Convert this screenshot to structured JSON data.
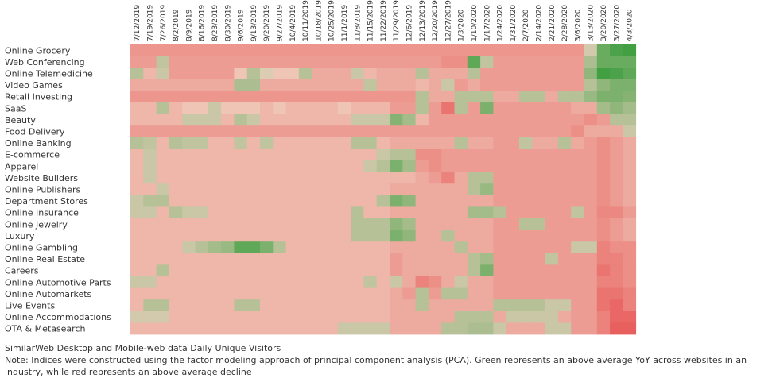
{
  "chart_data": {
    "type": "heatmap",
    "x": [
      "7/12/2019",
      "7/19/2019",
      "7/26/2019",
      "8/2/2019",
      "8/9/2019",
      "8/16/2019",
      "8/23/2019",
      "8/30/2019",
      "9/6/2019",
      "9/13/2019",
      "9/20/2019",
      "9/27/2019",
      "10/4/2019",
      "10/11/2019",
      "10/18/2019",
      "10/25/2019",
      "11/1/2019",
      "11/8/2019",
      "11/15/2019",
      "11/22/2019",
      "11/29/2019",
      "12/6/2019",
      "12/13/2019",
      "12/20/2019",
      "12/27/2019",
      "1/3/2020",
      "1/10/2020",
      "1/17/2020",
      "1/24/2020",
      "1/31/2020",
      "2/7/2020",
      "2/14/2020",
      "2/21/2020",
      "2/28/2020",
      "3/6/2020",
      "3/13/2020",
      "3/20/2020",
      "3/27/2020",
      "4/3/2020"
    ],
    "y": [
      "Online Grocery",
      "Web Conferencing",
      "Online Telemedicine",
      "Video Games",
      "Retail Investing",
      "SaaS",
      "Beauty",
      "Food Delivery",
      "Online Banking",
      "E-commerce",
      "Apparel",
      "Website Builders",
      "Online Publishers",
      "Department Stores",
      "Online Insurance",
      "Online Jewelry",
      "Luxury",
      "Online Gambling",
      "Online Real Estate",
      "Careers",
      "Online Automotive Parts",
      "Online Automarkets",
      "Live Events",
      "Online Accommodations",
      "OTA & Metasearch"
    ],
    "values": [
      [
        -0.45,
        -0.45,
        -0.45,
        -0.45,
        -0.45,
        -0.45,
        -0.45,
        -0.45,
        -0.45,
        -0.45,
        -0.45,
        -0.45,
        -0.45,
        -0.45,
        -0.45,
        -0.45,
        -0.45,
        -0.45,
        -0.45,
        -0.45,
        -0.45,
        -0.45,
        -0.45,
        -0.45,
        -0.45,
        -0.45,
        -0.45,
        -0.45,
        -0.45,
        -0.45,
        -0.45,
        -0.45,
        -0.45,
        -0.45,
        -0.45,
        0.15,
        0.7,
        0.85,
        0.9
      ],
      [
        -0.4,
        -0.4,
        0.25,
        -0.4,
        -0.4,
        -0.4,
        -0.4,
        -0.4,
        -0.4,
        -0.4,
        -0.4,
        -0.4,
        -0.4,
        -0.4,
        -0.4,
        -0.4,
        -0.4,
        -0.4,
        -0.4,
        -0.4,
        -0.4,
        -0.4,
        -0.4,
        -0.4,
        -0.5,
        -0.5,
        0.75,
        0.25,
        -0.4,
        -0.4,
        -0.4,
        -0.4,
        -0.4,
        -0.4,
        -0.4,
        0.35,
        0.7,
        0.7,
        0.7
      ],
      [
        0.3,
        -0.2,
        0.2,
        -0.4,
        -0.4,
        -0.4,
        -0.4,
        -0.4,
        -0.1,
        0.3,
        0.1,
        -0.1,
        -0.1,
        0.3,
        -0.3,
        -0.3,
        -0.3,
        0.2,
        -0.2,
        -0.3,
        -0.3,
        -0.3,
        0.3,
        -0.3,
        -0.3,
        -0.3,
        0.3,
        -0.4,
        -0.4,
        -0.4,
        -0.4,
        -0.4,
        -0.4,
        -0.4,
        -0.4,
        0.5,
        0.9,
        0.85,
        0.75
      ],
      [
        -0.3,
        -0.3,
        -0.3,
        -0.3,
        -0.3,
        -0.3,
        -0.3,
        -0.3,
        0.35,
        0.35,
        -0.3,
        -0.3,
        -0.3,
        -0.3,
        -0.3,
        -0.3,
        -0.3,
        -0.3,
        0.25,
        -0.3,
        -0.3,
        -0.3,
        -0.2,
        -0.3,
        0.2,
        -0.4,
        -0.3,
        -0.4,
        -0.4,
        -0.4,
        -0.4,
        -0.4,
        -0.4,
        -0.4,
        -0.4,
        0.3,
        0.5,
        0.6,
        0.6
      ],
      [
        -0.45,
        -0.45,
        -0.45,
        -0.45,
        -0.45,
        -0.45,
        -0.45,
        -0.45,
        -0.45,
        -0.45,
        -0.45,
        -0.45,
        -0.45,
        -0.45,
        -0.45,
        -0.45,
        -0.45,
        -0.45,
        -0.45,
        -0.45,
        -0.45,
        -0.45,
        0.3,
        -0.3,
        -0.3,
        0.3,
        0.3,
        0.3,
        -0.3,
        -0.3,
        0.3,
        0.3,
        -0.3,
        0.3,
        0.3,
        0.45,
        0.6,
        0.6,
        0.55
      ],
      [
        -0.2,
        -0.2,
        0.3,
        -0.2,
        -0.1,
        -0.1,
        0.2,
        -0.1,
        -0.1,
        -0.1,
        -0.2,
        -0.1,
        -0.2,
        -0.2,
        -0.2,
        -0.2,
        -0.1,
        -0.2,
        -0.2,
        -0.2,
        -0.4,
        -0.4,
        0.3,
        -0.4,
        -0.7,
        0.3,
        -0.4,
        0.6,
        -0.4,
        -0.4,
        -0.4,
        -0.4,
        -0.4,
        -0.4,
        -0.3,
        -0.3,
        0.4,
        0.5,
        0.4
      ],
      [
        -0.2,
        -0.2,
        -0.2,
        -0.2,
        0.2,
        0.2,
        0.2,
        -0.2,
        0.3,
        0.2,
        -0.2,
        -0.2,
        -0.2,
        -0.2,
        -0.2,
        -0.2,
        -0.2,
        0.2,
        0.2,
        0.2,
        0.55,
        0.4,
        -0.2,
        -0.4,
        -0.4,
        -0.4,
        -0.4,
        -0.4,
        -0.4,
        -0.4,
        -0.4,
        -0.4,
        -0.4,
        -0.4,
        -0.4,
        -0.5,
        -0.4,
        0.3,
        0.3
      ],
      [
        -0.4,
        -0.4,
        -0.4,
        -0.4,
        -0.4,
        -0.4,
        -0.4,
        -0.4,
        -0.4,
        -0.4,
        -0.4,
        -0.4,
        -0.4,
        -0.4,
        -0.4,
        -0.4,
        -0.4,
        -0.4,
        -0.4,
        -0.4,
        -0.4,
        -0.4,
        -0.4,
        -0.4,
        -0.4,
        -0.4,
        -0.4,
        -0.4,
        -0.4,
        -0.4,
        -0.4,
        -0.4,
        -0.4,
        -0.4,
        -0.5,
        -0.3,
        -0.3,
        -0.3,
        0.2
      ],
      [
        0.3,
        0.25,
        -0.2,
        0.3,
        0.25,
        0.25,
        -0.2,
        -0.2,
        0.25,
        -0.2,
        0.25,
        -0.2,
        -0.2,
        -0.2,
        -0.2,
        -0.2,
        -0.2,
        0.3,
        0.3,
        -0.2,
        -0.3,
        -0.3,
        -0.3,
        -0.3,
        -0.3,
        0.3,
        -0.3,
        -0.3,
        -0.4,
        -0.4,
        0.25,
        -0.3,
        -0.3,
        0.3,
        -0.3,
        -0.4,
        -0.5,
        -0.4,
        -0.3
      ],
      [
        -0.2,
        0.2,
        -0.2,
        -0.2,
        -0.2,
        -0.2,
        -0.2,
        -0.2,
        -0.2,
        -0.2,
        -0.2,
        -0.2,
        -0.2,
        -0.2,
        -0.2,
        -0.2,
        -0.2,
        -0.2,
        -0.2,
        0.2,
        0.3,
        0.3,
        -0.5,
        -0.5,
        -0.4,
        -0.4,
        -0.4,
        -0.4,
        -0.4,
        -0.4,
        -0.4,
        -0.4,
        -0.4,
        -0.4,
        -0.4,
        -0.4,
        -0.5,
        -0.4,
        -0.3
      ],
      [
        -0.2,
        0.2,
        -0.2,
        -0.2,
        -0.2,
        -0.2,
        -0.2,
        -0.2,
        -0.2,
        -0.2,
        -0.2,
        -0.2,
        -0.2,
        -0.2,
        -0.2,
        -0.2,
        -0.2,
        -0.2,
        0.2,
        0.3,
        0.6,
        0.4,
        -0.4,
        -0.5,
        -0.4,
        -0.4,
        -0.4,
        -0.4,
        -0.4,
        -0.4,
        -0.4,
        -0.4,
        -0.4,
        -0.4,
        -0.4,
        -0.4,
        -0.5,
        -0.4,
        -0.3
      ],
      [
        -0.2,
        0.2,
        -0.2,
        -0.2,
        -0.2,
        -0.2,
        -0.2,
        -0.2,
        -0.2,
        -0.2,
        -0.2,
        -0.2,
        -0.2,
        -0.2,
        -0.2,
        -0.2,
        -0.2,
        -0.2,
        -0.2,
        -0.2,
        -0.2,
        -0.2,
        -0.3,
        -0.4,
        -0.6,
        -0.3,
        0.3,
        0.3,
        -0.4,
        -0.4,
        -0.4,
        -0.4,
        -0.4,
        -0.4,
        -0.4,
        -0.4,
        -0.5,
        -0.4,
        -0.3
      ],
      [
        -0.2,
        -0.2,
        0.2,
        -0.2,
        -0.2,
        -0.2,
        -0.2,
        -0.2,
        -0.2,
        -0.2,
        -0.2,
        -0.2,
        -0.2,
        -0.2,
        -0.2,
        -0.2,
        -0.2,
        -0.2,
        -0.2,
        -0.2,
        -0.3,
        -0.3,
        -0.3,
        -0.3,
        -0.3,
        -0.3,
        0.3,
        0.45,
        -0.4,
        -0.4,
        -0.4,
        -0.4,
        -0.4,
        -0.4,
        -0.4,
        -0.4,
        -0.5,
        -0.4,
        -0.3
      ],
      [
        0.2,
        0.3,
        0.3,
        -0.2,
        -0.2,
        -0.2,
        -0.2,
        -0.2,
        -0.2,
        -0.2,
        -0.2,
        -0.2,
        -0.2,
        -0.2,
        -0.2,
        -0.2,
        -0.2,
        -0.2,
        -0.2,
        0.3,
        0.6,
        0.5,
        -0.3,
        -0.3,
        -0.3,
        -0.3,
        -0.3,
        -0.3,
        -0.4,
        -0.4,
        -0.4,
        -0.4,
        -0.4,
        -0.4,
        -0.4,
        -0.4,
        -0.5,
        -0.4,
        -0.3
      ],
      [
        0.2,
        0.2,
        -0.2,
        0.3,
        0.2,
        0.2,
        -0.2,
        -0.2,
        -0.2,
        -0.2,
        -0.2,
        -0.2,
        -0.2,
        -0.2,
        -0.2,
        -0.2,
        -0.2,
        0.3,
        -0.2,
        -0.2,
        -0.3,
        -0.3,
        -0.3,
        -0.3,
        -0.3,
        -0.3,
        0.4,
        0.4,
        0.3,
        -0.4,
        -0.4,
        -0.4,
        -0.4,
        -0.4,
        0.25,
        -0.4,
        -0.55,
        -0.55,
        -0.4
      ],
      [
        -0.2,
        -0.2,
        -0.2,
        -0.2,
        -0.2,
        -0.2,
        -0.2,
        -0.2,
        -0.2,
        -0.2,
        -0.2,
        -0.2,
        -0.2,
        -0.2,
        -0.2,
        -0.2,
        -0.2,
        0.3,
        0.3,
        0.3,
        0.5,
        0.4,
        -0.3,
        -0.3,
        -0.3,
        -0.3,
        -0.3,
        -0.3,
        -0.4,
        -0.4,
        0.3,
        0.3,
        -0.4,
        -0.4,
        -0.4,
        -0.4,
        -0.5,
        -0.4,
        -0.3
      ],
      [
        -0.2,
        -0.2,
        -0.2,
        -0.2,
        -0.2,
        -0.2,
        -0.2,
        -0.2,
        -0.2,
        -0.2,
        -0.2,
        -0.2,
        -0.2,
        -0.2,
        -0.2,
        -0.2,
        -0.2,
        0.3,
        0.3,
        0.3,
        0.6,
        0.5,
        -0.3,
        -0.3,
        0.3,
        -0.3,
        -0.3,
        -0.3,
        -0.4,
        -0.4,
        -0.4,
        -0.4,
        -0.4,
        -0.4,
        -0.4,
        -0.4,
        -0.5,
        -0.4,
        -0.3
      ],
      [
        -0.2,
        -0.2,
        -0.2,
        -0.2,
        0.2,
        0.3,
        0.4,
        0.45,
        0.75,
        0.75,
        0.6,
        0.3,
        -0.2,
        -0.2,
        -0.2,
        -0.2,
        -0.2,
        -0.2,
        -0.2,
        -0.2,
        -0.3,
        -0.3,
        -0.3,
        -0.3,
        -0.3,
        0.3,
        -0.3,
        -0.3,
        -0.4,
        -0.4,
        -0.4,
        -0.4,
        -0.4,
        -0.4,
        0.2,
        0.2,
        -0.6,
        -0.5,
        -0.5
      ],
      [
        -0.2,
        -0.2,
        -0.2,
        -0.2,
        -0.2,
        -0.2,
        -0.2,
        -0.2,
        -0.2,
        -0.2,
        -0.2,
        -0.2,
        -0.2,
        -0.2,
        -0.2,
        -0.2,
        -0.2,
        -0.2,
        -0.2,
        -0.2,
        -0.4,
        -0.3,
        -0.3,
        -0.3,
        -0.3,
        -0.3,
        0.3,
        0.4,
        -0.4,
        -0.4,
        -0.4,
        -0.4,
        0.25,
        -0.4,
        -0.4,
        -0.4,
        -0.6,
        -0.6,
        -0.5
      ],
      [
        -0.2,
        -0.2,
        0.3,
        -0.2,
        -0.2,
        -0.2,
        -0.2,
        -0.2,
        -0.2,
        -0.2,
        -0.2,
        -0.2,
        -0.2,
        -0.2,
        -0.2,
        -0.2,
        -0.2,
        -0.2,
        -0.2,
        -0.2,
        -0.4,
        -0.3,
        -0.3,
        -0.3,
        -0.3,
        -0.3,
        0.3,
        0.6,
        -0.4,
        -0.4,
        -0.4,
        -0.4,
        -0.4,
        -0.4,
        -0.4,
        -0.4,
        -0.7,
        -0.6,
        -0.5
      ],
      [
        0.2,
        0.2,
        -0.2,
        -0.2,
        -0.2,
        -0.2,
        -0.2,
        -0.2,
        -0.2,
        -0.2,
        -0.2,
        -0.2,
        -0.2,
        -0.2,
        -0.2,
        -0.2,
        -0.2,
        -0.2,
        0.25,
        -0.2,
        0.2,
        -0.3,
        -0.6,
        -0.5,
        -0.3,
        0.2,
        -0.3,
        -0.3,
        -0.4,
        -0.4,
        -0.4,
        -0.4,
        -0.4,
        -0.4,
        -0.4,
        -0.4,
        -0.6,
        -0.6,
        -0.5
      ],
      [
        -0.2,
        -0.2,
        -0.2,
        -0.2,
        -0.2,
        -0.2,
        -0.2,
        -0.2,
        -0.2,
        -0.2,
        -0.2,
        -0.2,
        -0.2,
        -0.2,
        -0.2,
        -0.2,
        -0.2,
        -0.2,
        -0.2,
        -0.2,
        -0.3,
        -0.4,
        0.3,
        -0.4,
        0.3,
        0.3,
        -0.3,
        -0.3,
        -0.4,
        -0.4,
        -0.4,
        -0.4,
        -0.4,
        -0.4,
        -0.4,
        -0.4,
        -0.7,
        -0.7,
        -0.6
      ],
      [
        -0.2,
        0.3,
        0.3,
        -0.2,
        -0.2,
        -0.2,
        -0.2,
        -0.2,
        0.3,
        0.3,
        -0.2,
        -0.2,
        -0.2,
        -0.2,
        -0.2,
        -0.2,
        -0.2,
        -0.2,
        -0.2,
        -0.2,
        -0.3,
        -0.3,
        0.3,
        -0.3,
        -0.3,
        -0.3,
        -0.3,
        -0.3,
        0.3,
        0.3,
        0.3,
        0.3,
        0.2,
        0.2,
        -0.4,
        -0.4,
        -0.7,
        -0.8,
        -0.6
      ],
      [
        0.15,
        0.15,
        0.15,
        -0.2,
        -0.2,
        -0.2,
        -0.2,
        -0.2,
        -0.2,
        -0.2,
        -0.2,
        -0.2,
        -0.2,
        -0.2,
        -0.2,
        -0.2,
        -0.2,
        -0.2,
        -0.2,
        -0.2,
        -0.3,
        -0.3,
        -0.3,
        -0.3,
        -0.3,
        0.3,
        0.3,
        0.3,
        -0.3,
        0.2,
        0.2,
        0.2,
        0.2,
        -0.3,
        -0.4,
        -0.4,
        -0.6,
        -0.8,
        -0.8
      ],
      [
        -0.2,
        -0.2,
        -0.2,
        -0.2,
        -0.2,
        -0.2,
        -0.2,
        -0.2,
        -0.2,
        -0.2,
        -0.2,
        -0.2,
        -0.2,
        -0.2,
        -0.2,
        -0.2,
        0.2,
        0.2,
        0.2,
        0.2,
        -0.3,
        -0.3,
        -0.3,
        -0.3,
        0.3,
        0.3,
        0.35,
        0.35,
        0.2,
        -0.3,
        -0.3,
        -0.3,
        0.2,
        0.2,
        -0.4,
        -0.4,
        -0.6,
        -0.85,
        -0.85
      ]
    ],
    "color_scale": {
      "negative": "#e74c4c",
      "neutral": "#f0d2c2",
      "positive": "#2f9a35"
    },
    "legend": "none"
  },
  "notes": {
    "source": "SimilarWeb Desktop and Mobile-web data Daily Unique Visitors",
    "note": "Note: Indices were constructed using the factor modeling approach of principal component analysis (PCA). Green represents an above average YoY across websites in an industry, while red represents an above average decline"
  }
}
